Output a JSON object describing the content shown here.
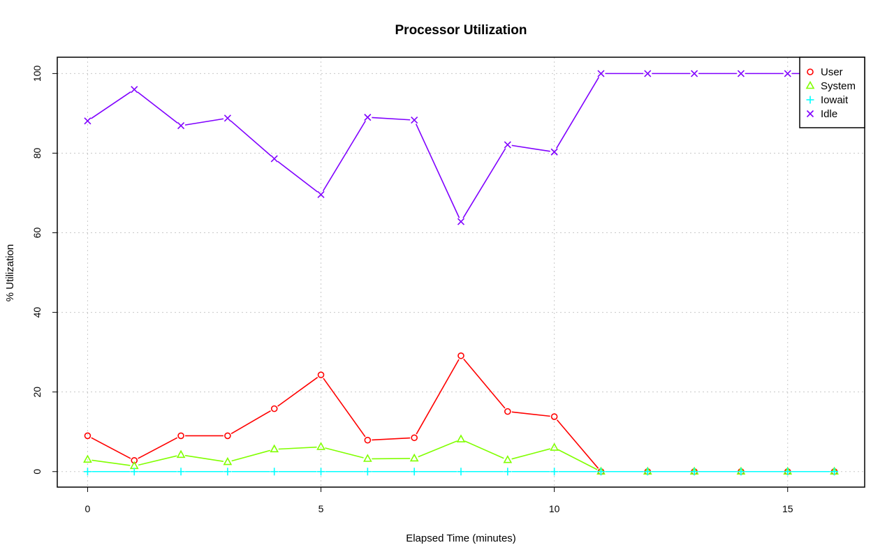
{
  "chart_data": {
    "type": "line",
    "title": "Processor Utilization",
    "xlabel": "Elapsed Time (minutes)",
    "ylabel": "% Utilization",
    "xlim": [
      -0.65,
      16.65
    ],
    "ylim": [
      -3.9,
      104.1
    ],
    "x_ticks": [
      0,
      5,
      10,
      15
    ],
    "y_ticks": [
      0,
      20,
      40,
      60,
      80,
      100
    ],
    "x_tick_labels": [
      "0",
      "5",
      "10",
      "15"
    ],
    "y_tick_labels": [
      "0",
      "20",
      "40",
      "60",
      "80",
      "100"
    ],
    "grid": true,
    "legend_position": "top-right",
    "x": [
      0,
      1,
      2,
      3,
      4,
      5,
      6,
      7,
      8,
      9,
      10,
      11,
      12,
      13,
      14,
      15,
      16
    ],
    "series": [
      {
        "name": "User",
        "color": "#ff0000",
        "marker": "circle",
        "values": [
          9,
          2.8,
          9,
          9,
          15.8,
          24.3,
          7.9,
          8.5,
          29.1,
          15.1,
          13.8,
          0,
          0,
          0,
          0,
          0,
          0
        ]
      },
      {
        "name": "System",
        "color": "#80ff00",
        "marker": "triangle",
        "values": [
          3,
          1.4,
          4.2,
          2.4,
          5.6,
          6.2,
          3.2,
          3.3,
          8.1,
          2.9,
          6,
          0,
          0,
          0,
          0,
          0,
          0
        ]
      },
      {
        "name": "Iowait",
        "color": "#00ffff",
        "marker": "plus",
        "values": [
          0,
          0,
          0,
          0,
          0,
          0,
          0,
          0,
          0,
          0,
          0,
          0,
          0,
          0,
          0,
          0,
          0
        ]
      },
      {
        "name": "Idle",
        "color": "#8000ff",
        "marker": "cross",
        "values": [
          88.1,
          96,
          86.9,
          88.8,
          78.6,
          69.6,
          89,
          88.3,
          62.8,
          82.1,
          80.3,
          100,
          100,
          100,
          100,
          100,
          100
        ]
      }
    ]
  }
}
